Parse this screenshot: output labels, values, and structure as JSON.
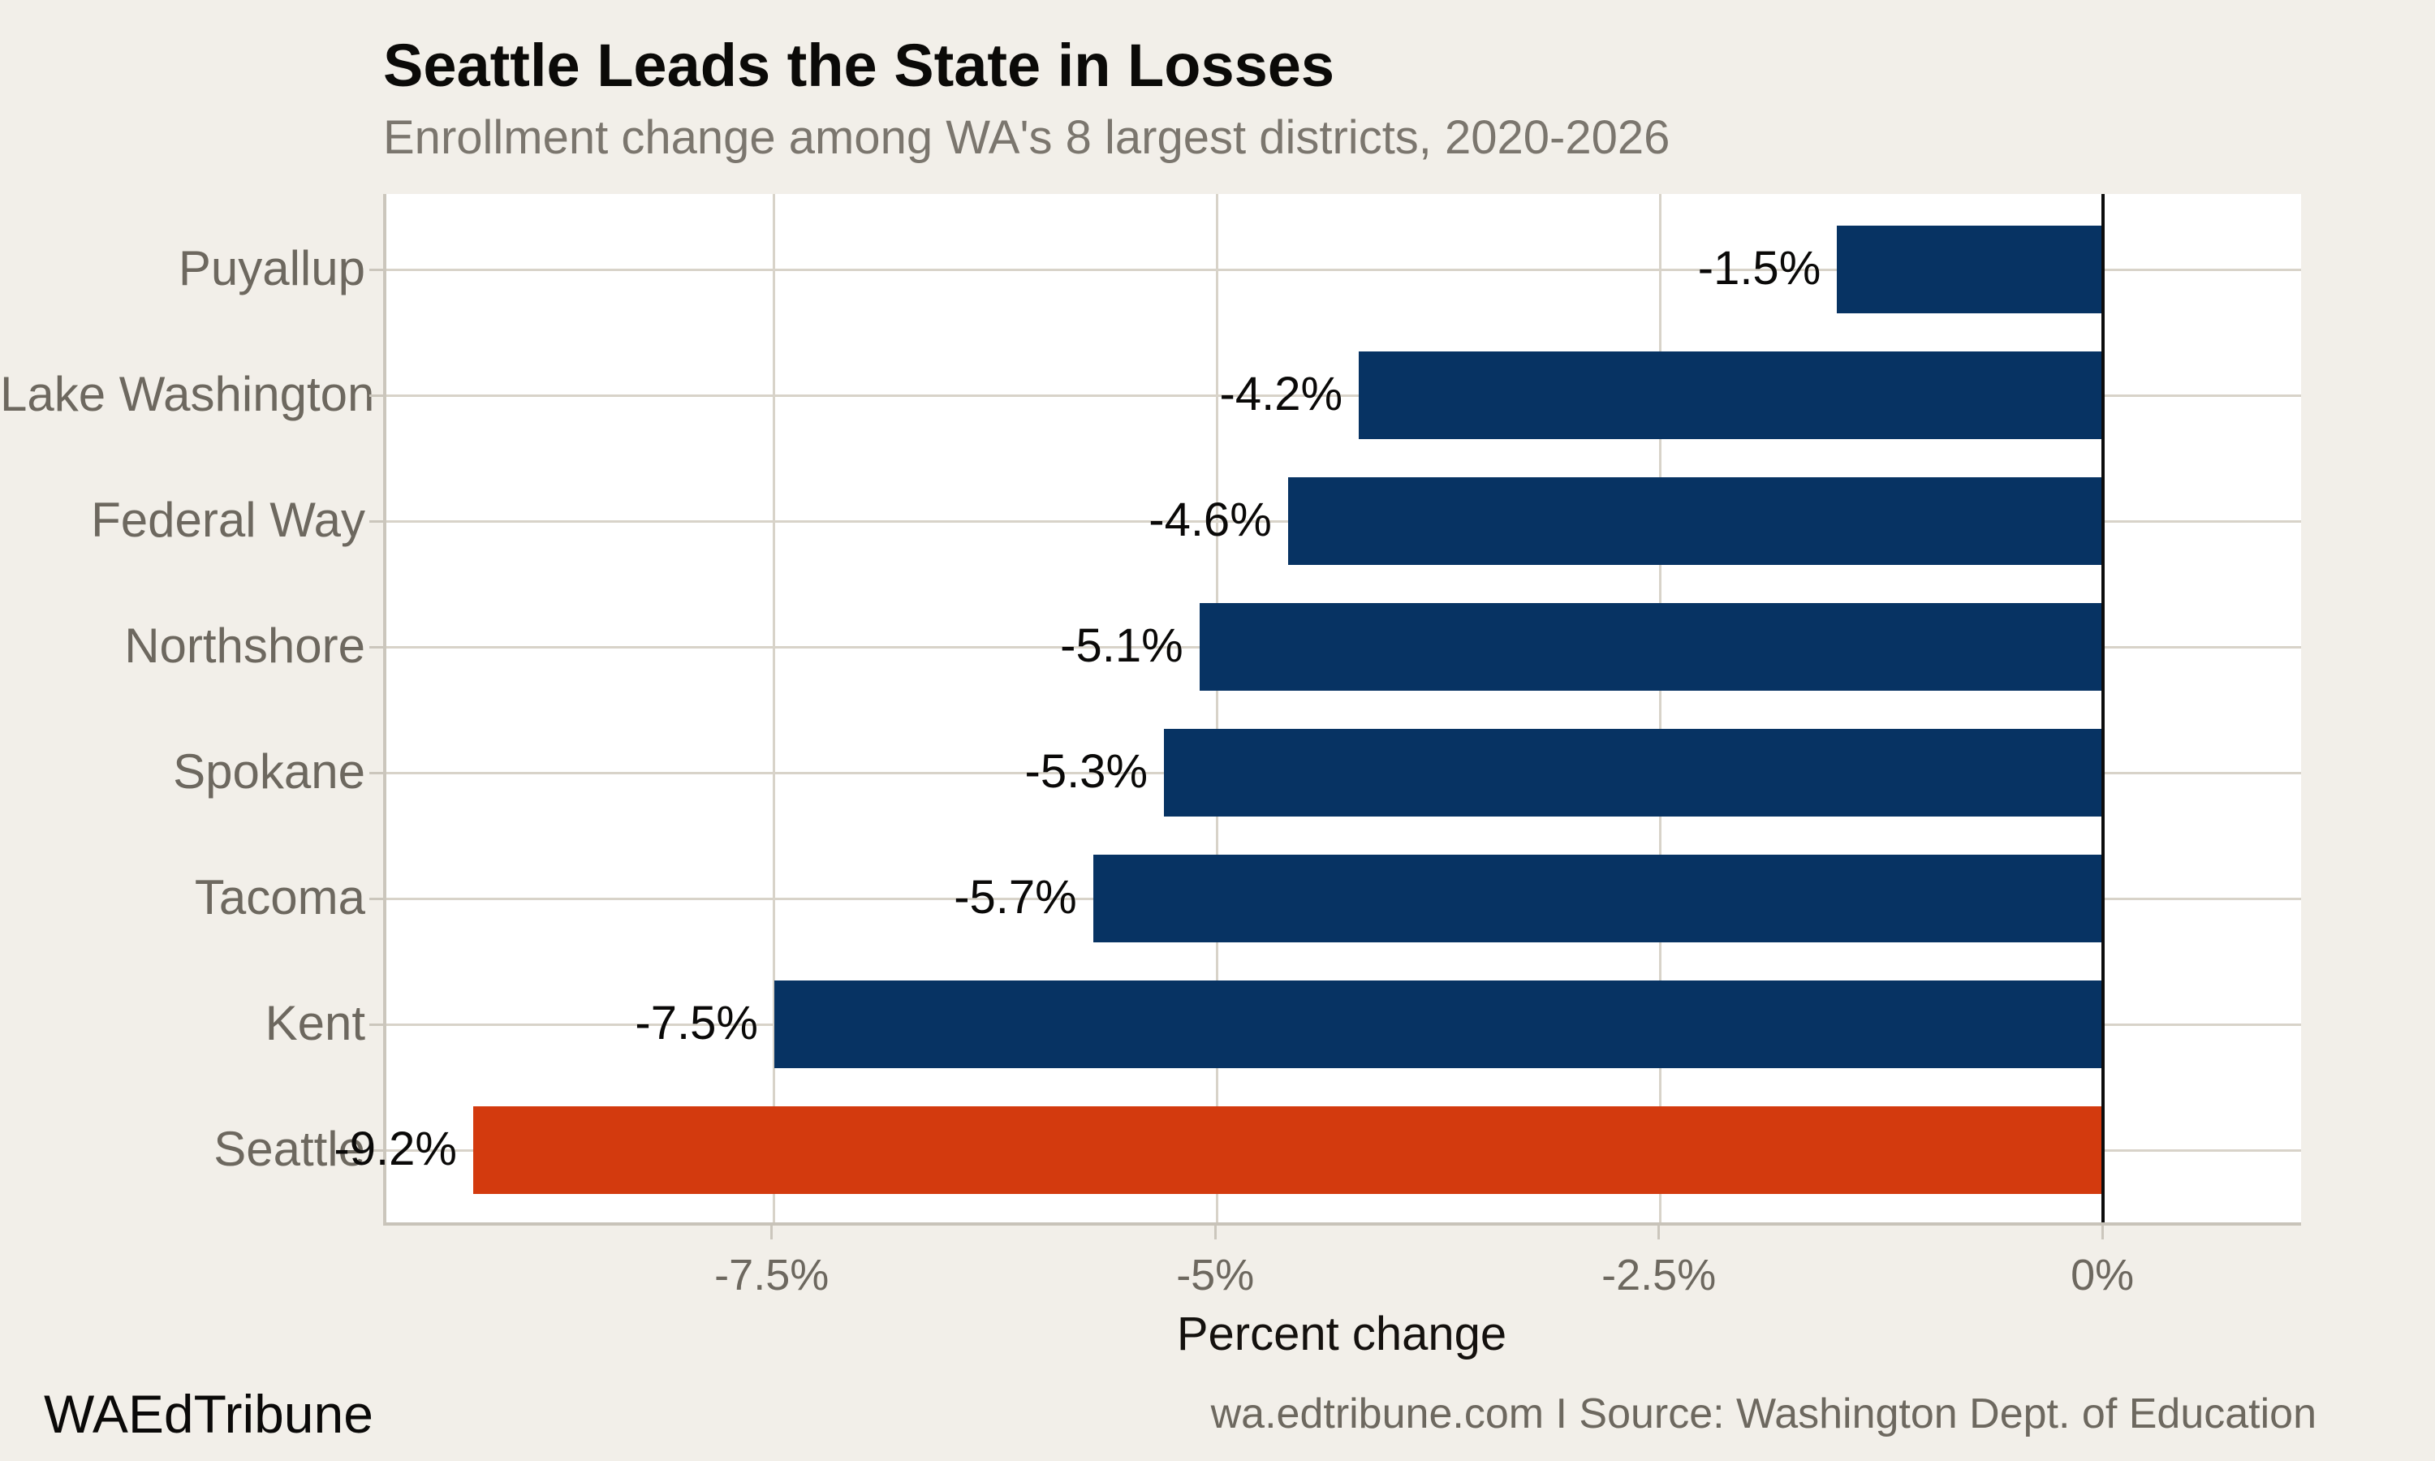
{
  "header": {
    "title": "Seattle Leads the State in Losses",
    "subtitle": "Enrollment change among WA's 8 largest districts, 2020-2026"
  },
  "chart_data": {
    "type": "bar",
    "orientation": "horizontal",
    "title": "Seattle Leads the State in Losses",
    "subtitle": "Enrollment change among WA's 8 largest districts, 2020-2026",
    "categories": [
      "Puyallup",
      "Lake Washington",
      "Federal Way",
      "Northshore",
      "Spokane",
      "Tacoma",
      "Kent",
      "Seattle"
    ],
    "values": [
      -1.5,
      -4.2,
      -4.6,
      -5.1,
      -5.3,
      -5.7,
      -7.5,
      -9.2
    ],
    "value_labels": [
      "-1.5%",
      "-4.2%",
      "-4.6%",
      "-5.1%",
      "-5.3%",
      "-5.7%",
      "-7.5%",
      "-9.2%"
    ],
    "xlabel": "Percent change",
    "ylabel": "",
    "x_ticks": [
      {
        "value": -7.5,
        "label": "-7.5%"
      },
      {
        "value": -5,
        "label": "-5%"
      },
      {
        "value": -2.5,
        "label": "-2.5%"
      },
      {
        "value": 0,
        "label": "0%"
      }
    ],
    "xlim": [
      -9.69,
      1.12
    ],
    "grid": true,
    "legend": "none",
    "zero_line": true,
    "highlight_category": "Seattle",
    "bar_color": "#073363",
    "highlight_color": "#d33a0e"
  },
  "footer": {
    "brand": "WAEdTribune",
    "source": "wa.edtribune.com I Source: Washington Dept. of Education"
  },
  "colors": {
    "page_background": "#f2efe9",
    "plot_background": "#ffffff",
    "gridline": "#d8d3c9",
    "axis_line": "#cbc6bc",
    "zero_line": "#0c0c0c",
    "muted_text": "#6d685f",
    "dark_text": "#0a0908"
  }
}
